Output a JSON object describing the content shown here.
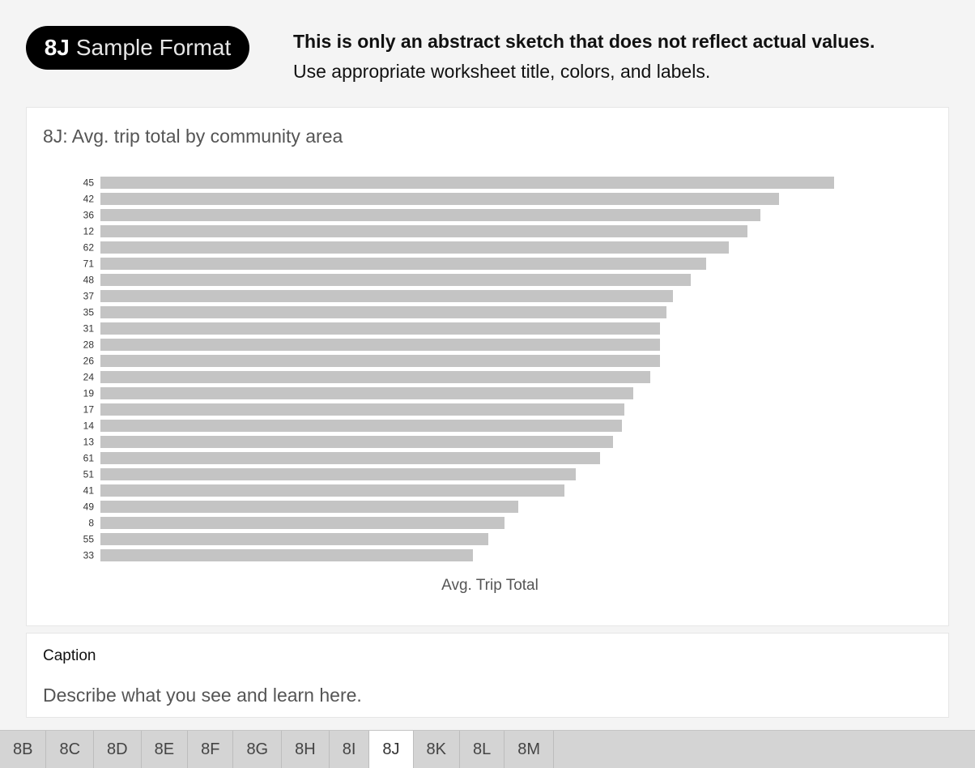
{
  "header": {
    "pill_code": "8J",
    "pill_label": "Sample Format",
    "note_bold": "This is only an abstract sketch that does not reflect actual values.",
    "note_regular": "Use appropriate worksheet title, colors, and labels."
  },
  "chart_card": {
    "title": "8J: Avg. trip total by community area"
  },
  "chart_data": {
    "type": "bar",
    "orientation": "horizontal",
    "categories": [
      "45",
      "42",
      "36",
      "12",
      "62",
      "71",
      "48",
      "37",
      "35",
      "31",
      "28",
      "26",
      "24",
      "19",
      "17",
      "14",
      "13",
      "61",
      "51",
      "41",
      "49",
      "8",
      "55",
      "33"
    ],
    "values": [
      906,
      838,
      815,
      799,
      776,
      748,
      729,
      707,
      699,
      691,
      691,
      691,
      679,
      658,
      647,
      644,
      633,
      617,
      587,
      573,
      516,
      499,
      479,
      460
    ],
    "xlabel": "Avg. Trip Total",
    "ylabel": "",
    "xlim": [
      0,
      1000
    ],
    "bar_color": "#c4c4c4",
    "grid": false
  },
  "caption": {
    "label": "Caption",
    "text": "Describe what you see and learn here."
  },
  "tabs": [
    {
      "label": "8B",
      "active": false
    },
    {
      "label": "8C",
      "active": false
    },
    {
      "label": "8D",
      "active": false
    },
    {
      "label": "8E",
      "active": false
    },
    {
      "label": "8F",
      "active": false
    },
    {
      "label": "8G",
      "active": false
    },
    {
      "label": "8H",
      "active": false
    },
    {
      "label": "8I",
      "active": false
    },
    {
      "label": "8J",
      "active": true
    },
    {
      "label": "8K",
      "active": false
    },
    {
      "label": "8L",
      "active": false
    },
    {
      "label": "8M",
      "active": false
    }
  ]
}
